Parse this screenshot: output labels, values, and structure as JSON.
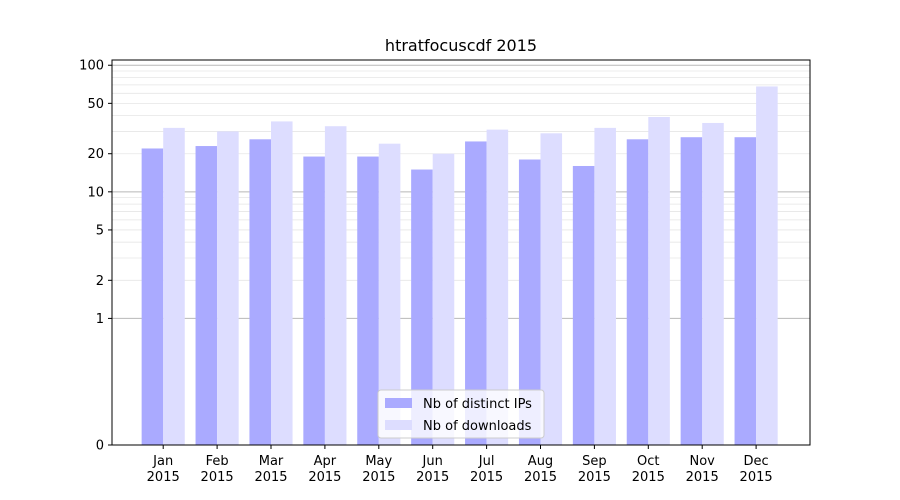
{
  "chart_data": {
    "type": "bar",
    "title": "htratfocuscdf 2015",
    "xlabel": "",
    "ylabel": "",
    "yscale": "symlog",
    "ylim": [
      0,
      110
    ],
    "yticks": [
      0,
      1,
      2,
      5,
      10,
      20,
      50,
      100
    ],
    "ytick_labels": [
      "0",
      "1",
      "2",
      "5",
      "10",
      "20",
      "50",
      "100"
    ],
    "categories": [
      "Jan\n2015",
      "Feb\n2015",
      "Mar\n2015",
      "Apr\n2015",
      "May\n2015",
      "Jun\n2015",
      "Jul\n2015",
      "Aug\n2015",
      "Sep\n2015",
      "Oct\n2015",
      "Nov\n2015",
      "Dec\n2015"
    ],
    "series": [
      {
        "name": "Nb of distinct IPs",
        "color": "#aaaaff",
        "values": [
          22,
          23,
          26,
          19,
          19,
          15,
          25,
          18,
          16,
          26,
          27,
          27
        ]
      },
      {
        "name": "Nb of downloads",
        "color": "#ddddff",
        "values": [
          32,
          30,
          36,
          33,
          24,
          20,
          31,
          29,
          32,
          39,
          35,
          68
        ]
      }
    ],
    "grid": true,
    "legend_position": "bottom-center"
  }
}
